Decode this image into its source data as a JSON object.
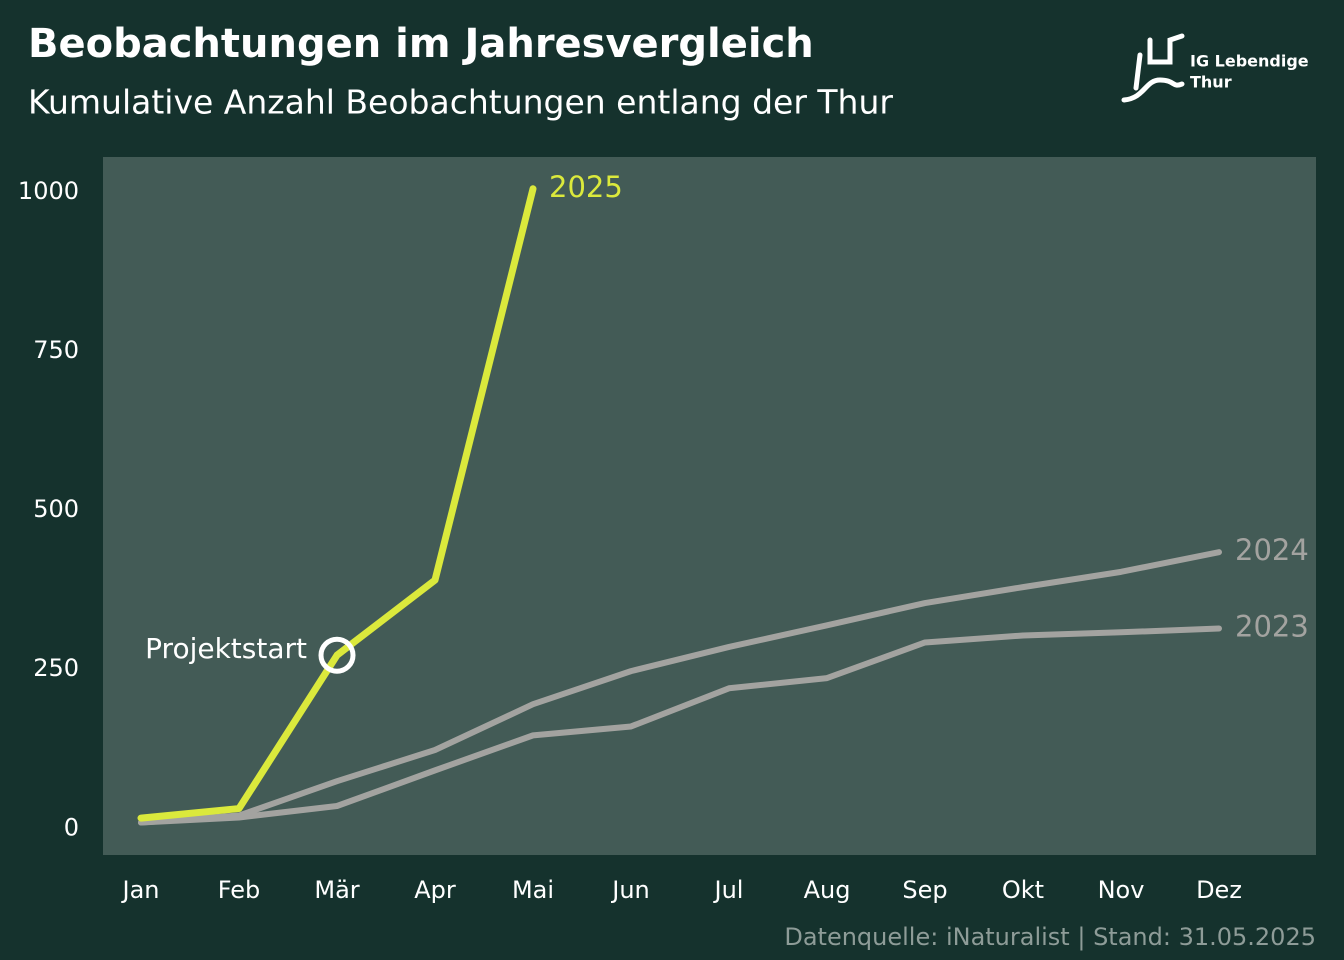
{
  "chart_data": {
    "type": "line",
    "title": "Beobachtungen im Jahresvergleich",
    "subtitle": "Kumulative Anzahl Beobachtungen entlang der Thur",
    "categories": [
      "Jan",
      "Feb",
      "Mär",
      "Apr",
      "Mai",
      "Jun",
      "Jul",
      "Aug",
      "Sep",
      "Okt",
      "Nov",
      "Dez"
    ],
    "series": [
      {
        "name": "2023",
        "color": "#a3a3a0",
        "values": [
          9,
          17,
          35,
          91,
          146,
          160,
          220,
          236,
          292,
          303,
          308,
          314
        ]
      },
      {
        "name": "2024",
        "color": "#a3a3a0",
        "values": [
          9,
          20,
          74,
          123,
          195,
          247,
          285,
          319,
          354,
          379,
          403,
          434
        ]
      },
      {
        "name": "2025",
        "color": "#dbe93c",
        "values": [
          16,
          31,
          272,
          390,
          1005,
          null,
          null,
          null,
          null,
          null,
          null,
          null
        ]
      }
    ],
    "ylim": [
      -42,
      1055
    ],
    "yticks": [
      0,
      250,
      500,
      750,
      1000
    ],
    "grid": false,
    "annotations": [
      {
        "text": "Projektstart",
        "x": "Mär",
        "series": "2025"
      }
    ],
    "source": "Datenquelle: iNaturalist | Stand: 31.05.2025"
  },
  "logo": {
    "line1": "IG Lebendige",
    "line2": "Thur"
  }
}
